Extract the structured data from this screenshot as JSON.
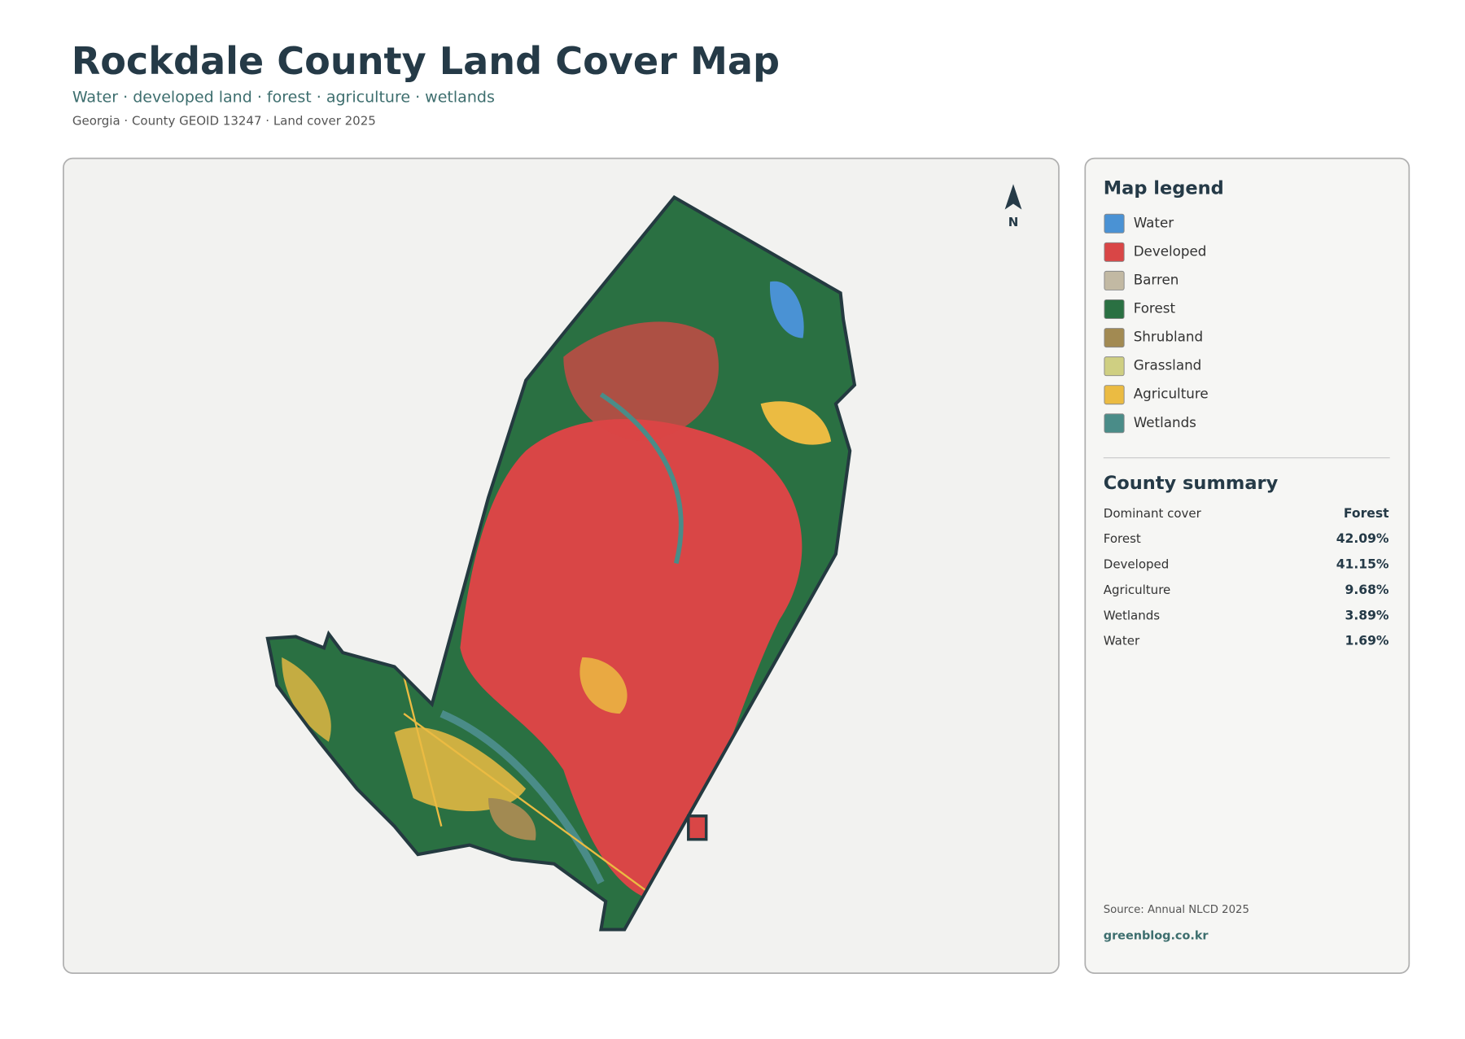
{
  "header": {
    "title": "Rockdale County Land Cover Map",
    "subtitle": "Water · developed land · forest · agriculture · wetlands",
    "meta": "Georgia · County GEOID 13247 · Land cover 2025"
  },
  "map": {
    "north_label": "N"
  },
  "legend": {
    "title": "Map legend",
    "items": [
      {
        "label": "Water",
        "color": "#4a92d4"
      },
      {
        "label": "Developed",
        "color": "#d94646"
      },
      {
        "label": "Barren",
        "color": "#c2b9a3"
      },
      {
        "label": "Forest",
        "color": "#2a7042"
      },
      {
        "label": "Shrubland",
        "color": "#a28a52"
      },
      {
        "label": "Grassland",
        "color": "#cfcf82"
      },
      {
        "label": "Agriculture",
        "color": "#ebbb42"
      },
      {
        "label": "Wetlands",
        "color": "#4a8c88"
      }
    ]
  },
  "summary": {
    "title": "County summary",
    "rows": [
      {
        "label": "Dominant cover",
        "value": "Forest"
      },
      {
        "label": "Forest",
        "value": "42.09%"
      },
      {
        "label": "Developed",
        "value": "41.15%"
      },
      {
        "label": "Agriculture",
        "value": "9.68%"
      },
      {
        "label": "Wetlands",
        "value": "3.89%"
      },
      {
        "label": "Water",
        "value": "1.69%"
      }
    ]
  },
  "footer": {
    "source": "Source: Annual NLCD 2025",
    "site": "greenblog.co.kr"
  }
}
